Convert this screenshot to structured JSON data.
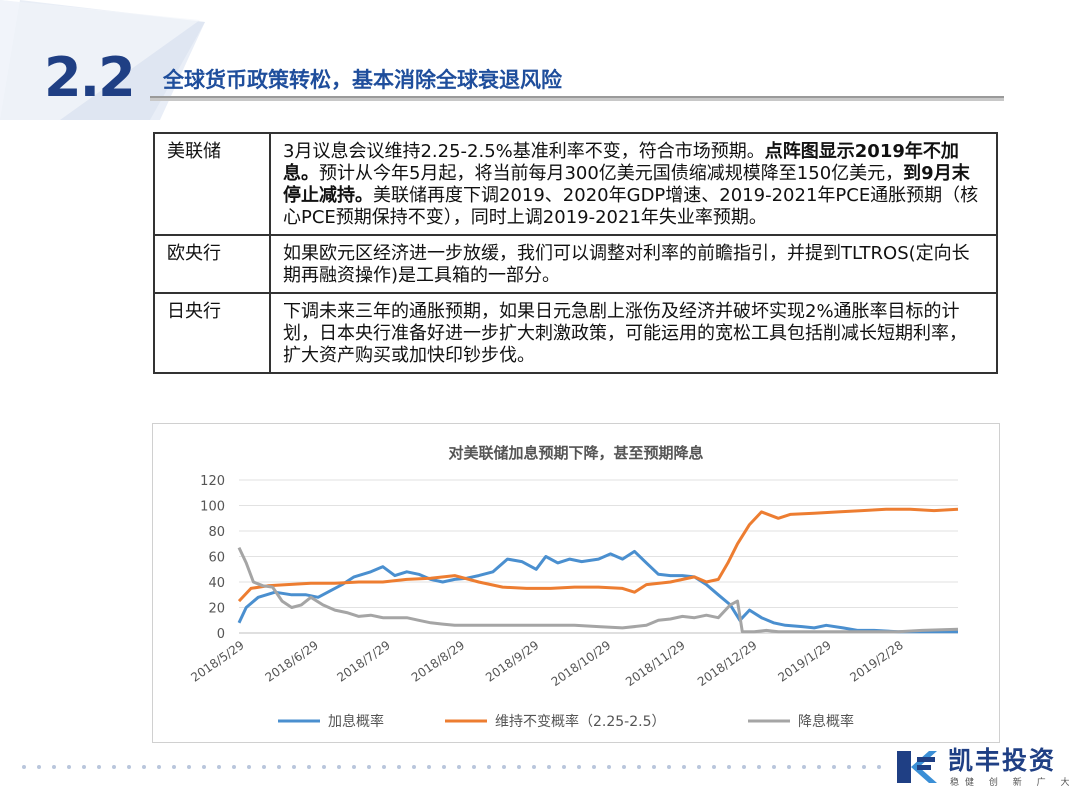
{
  "section": {
    "number": "2.2",
    "title": "全球货币政策转松，基本消除全球衰退风险"
  },
  "table": {
    "rows": [
      {
        "bank": "美联储",
        "segments": [
          {
            "text": "3月议息会议维持2.25-2.5%基准利率不变，符合市场预期。",
            "bold": false
          },
          {
            "text": "点阵图显示2019年不加息。",
            "bold": true
          },
          {
            "text": "预计从今年5月起，将当前每月300亿美元国债缩减规模降至150亿美元，",
            "bold": false
          },
          {
            "text": "到9月末停止减持。",
            "bold": true
          },
          {
            "text": "美联储再度下调2019、2020年GDP增速、2019-2021年PCE通胀预期（核心PCE预期保持不变），同时上调2019-2021年失业率预期。",
            "bold": false
          }
        ]
      },
      {
        "bank": "欧央行",
        "segments": [
          {
            "text": "如果欧元区经济进一步放缓，我们可以调整对利率的前瞻指引，并提到TLTROS(定向长期再融资操作)是工具箱的一部分。",
            "bold": false
          }
        ]
      },
      {
        "bank": "日央行",
        "segments": [
          {
            "text": "下调未来三年的通胀预期，如果日元急剧上涨伤及经济并破坏实现2%通胀率目标的计划，日本央行准备好进一步扩大刺激政策，可能运用的宽松工具包括削减长短期利率，扩大资产购买或加快印钞步伐。",
            "bold": false
          }
        ]
      }
    ]
  },
  "chart_data": {
    "type": "line",
    "title": "对美联储加息预期下降，甚至预期降息",
    "ylim": [
      0,
      120
    ],
    "yticks": [
      0,
      20,
      40,
      60,
      80,
      100,
      120
    ],
    "xticks": [
      "2018/5/29",
      "2018/6/29",
      "2018/7/29",
      "2018/8/29",
      "2018/9/29",
      "2018/10/29",
      "2018/11/29",
      "2018/12/29",
      "2019/1/29",
      "2019/2/28"
    ],
    "xtick_pos": [
      0,
      31,
      61,
      92,
      123,
      153,
      184,
      214,
      245,
      275
    ],
    "x_span": 300,
    "grid": true,
    "legend_position": "bottom",
    "series": [
      {
        "name": "加息概率",
        "color": "#4a8fcf",
        "points": [
          [
            0,
            8
          ],
          [
            3,
            20
          ],
          [
            8,
            28
          ],
          [
            15,
            32
          ],
          [
            22,
            30
          ],
          [
            28,
            30
          ],
          [
            33,
            28
          ],
          [
            38,
            33
          ],
          [
            43,
            38
          ],
          [
            48,
            44
          ],
          [
            55,
            48
          ],
          [
            60,
            52
          ],
          [
            65,
            45
          ],
          [
            70,
            48
          ],
          [
            75,
            46
          ],
          [
            80,
            42
          ],
          [
            85,
            40
          ],
          [
            90,
            42
          ],
          [
            95,
            43
          ],
          [
            100,
            45
          ],
          [
            106,
            48
          ],
          [
            112,
            58
          ],
          [
            118,
            56
          ],
          [
            124,
            50
          ],
          [
            128,
            60
          ],
          [
            133,
            55
          ],
          [
            138,
            58
          ],
          [
            143,
            56
          ],
          [
            150,
            58
          ],
          [
            155,
            62
          ],
          [
            160,
            58
          ],
          [
            165,
            64
          ],
          [
            170,
            55
          ],
          [
            175,
            46
          ],
          [
            180,
            45
          ],
          [
            185,
            45
          ],
          [
            190,
            44
          ],
          [
            195,
            38
          ],
          [
            200,
            30
          ],
          [
            205,
            22
          ],
          [
            209,
            10
          ],
          [
            213,
            18
          ],
          [
            218,
            12
          ],
          [
            223,
            8
          ],
          [
            228,
            6
          ],
          [
            235,
            5
          ],
          [
            240,
            4
          ],
          [
            245,
            6
          ],
          [
            252,
            4
          ],
          [
            258,
            2
          ],
          [
            265,
            2
          ],
          [
            275,
            1
          ],
          [
            285,
            1
          ],
          [
            300,
            1
          ]
        ]
      },
      {
        "name": "维持不变概率（2.25-2.5）",
        "color": "#ed7d31",
        "points": [
          [
            0,
            25
          ],
          [
            5,
            35
          ],
          [
            12,
            37
          ],
          [
            20,
            38
          ],
          [
            30,
            39
          ],
          [
            40,
            39
          ],
          [
            50,
            40
          ],
          [
            60,
            40
          ],
          [
            70,
            42
          ],
          [
            80,
            43
          ],
          [
            90,
            45
          ],
          [
            100,
            40
          ],
          [
            110,
            36
          ],
          [
            120,
            35
          ],
          [
            130,
            35
          ],
          [
            140,
            36
          ],
          [
            150,
            36
          ],
          [
            160,
            35
          ],
          [
            165,
            32
          ],
          [
            170,
            38
          ],
          [
            180,
            40
          ],
          [
            190,
            44
          ],
          [
            195,
            40
          ],
          [
            200,
            42
          ],
          [
            204,
            55
          ],
          [
            208,
            70
          ],
          [
            213,
            85
          ],
          [
            218,
            95
          ],
          [
            225,
            90
          ],
          [
            230,
            93
          ],
          [
            240,
            94
          ],
          [
            250,
            95
          ],
          [
            260,
            96
          ],
          [
            270,
            97
          ],
          [
            280,
            97
          ],
          [
            290,
            96
          ],
          [
            300,
            97
          ]
        ]
      },
      {
        "name": "降息概率",
        "color": "#a5a5a5",
        "points": [
          [
            0,
            67
          ],
          [
            3,
            55
          ],
          [
            6,
            40
          ],
          [
            10,
            37
          ],
          [
            14,
            36
          ],
          [
            18,
            25
          ],
          [
            22,
            20
          ],
          [
            26,
            22
          ],
          [
            30,
            28
          ],
          [
            35,
            22
          ],
          [
            40,
            18
          ],
          [
            45,
            16
          ],
          [
            50,
            13
          ],
          [
            55,
            14
          ],
          [
            60,
            12
          ],
          [
            65,
            12
          ],
          [
            70,
            12
          ],
          [
            75,
            10
          ],
          [
            80,
            8
          ],
          [
            85,
            7
          ],
          [
            90,
            6
          ],
          [
            100,
            6
          ],
          [
            110,
            6
          ],
          [
            120,
            6
          ],
          [
            130,
            6
          ],
          [
            140,
            6
          ],
          [
            150,
            5
          ],
          [
            160,
            4
          ],
          [
            170,
            6
          ],
          [
            175,
            10
          ],
          [
            180,
            11
          ],
          [
            185,
            13
          ],
          [
            190,
            12
          ],
          [
            195,
            14
          ],
          [
            200,
            12
          ],
          [
            205,
            22
          ],
          [
            208,
            25
          ],
          [
            210,
            1
          ],
          [
            215,
            1
          ],
          [
            220,
            2
          ],
          [
            225,
            1
          ],
          [
            235,
            1
          ],
          [
            245,
            1
          ],
          [
            255,
            1
          ],
          [
            265,
            1
          ],
          [
            275,
            1
          ],
          [
            285,
            2
          ],
          [
            300,
            3
          ]
        ]
      }
    ]
  },
  "logo": {
    "name": "凯丰投资",
    "slogan": "稳健 创 新 广 大",
    "color": "#1f3f84"
  }
}
